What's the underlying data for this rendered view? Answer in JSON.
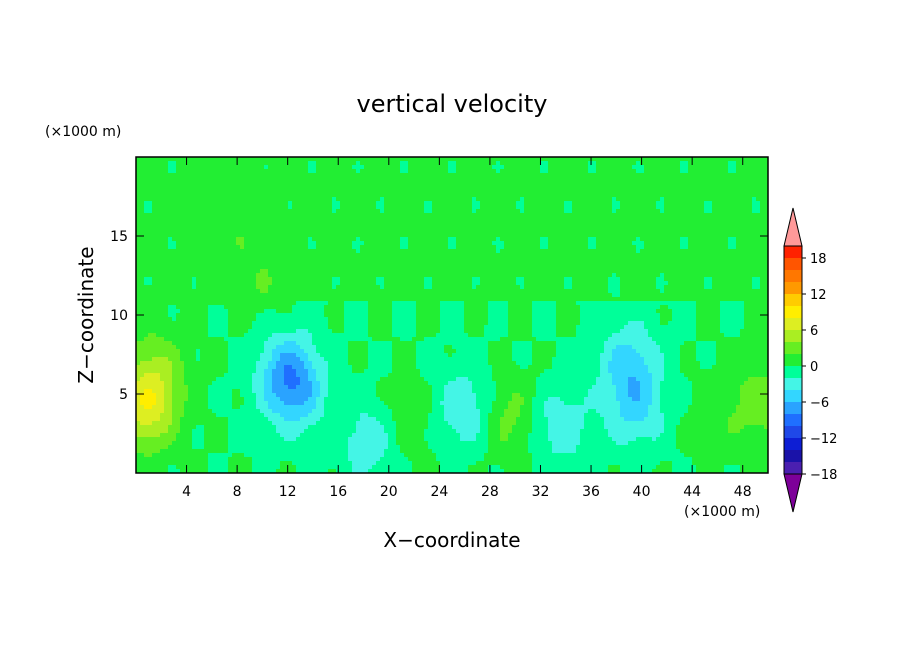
{
  "chart_data": {
    "type": "heatmap",
    "title": "vertical velocity",
    "xlabel": "X−coordinate",
    "ylabel": "Z−coordinate",
    "x_unit": "(×1000 m)",
    "y_unit": "(×1000 m)",
    "xlim": [
      0,
      50
    ],
    "ylim": [
      0,
      20
    ],
    "x_ticks": [
      4,
      8,
      12,
      16,
      20,
      24,
      28,
      32,
      36,
      40,
      44,
      48
    ],
    "y_ticks": [
      5,
      10,
      15
    ],
    "x_tick_labels": [
      "4",
      "8",
      "12",
      "16",
      "20",
      "24",
      "28",
      "32",
      "36",
      "40",
      "44",
      "48"
    ],
    "y_tick_labels": [
      "5",
      "10",
      "15"
    ],
    "colorbar": {
      "levels": [
        -20,
        -18,
        -16,
        -14,
        -12,
        -10,
        -8,
        -6,
        -4,
        -2,
        0,
        2,
        4,
        6,
        8,
        10,
        12,
        14,
        16,
        18,
        20
      ],
      "tick_values": [
        18,
        12,
        6,
        0,
        -6,
        -12,
        -18
      ],
      "tick_labels": [
        "18",
        "12",
        "6",
        "0",
        "−6",
        "−12",
        "−18"
      ],
      "colors": [
        "#7d0099",
        "#4a1fb0",
        "#1a12a8",
        "#0d1ed4",
        "#1f48e8",
        "#1f6fff",
        "#2aa3ff",
        "#33d6ff",
        "#44f5e6",
        "#00ff99",
        "#22ee33",
        "#66ee22",
        "#aaee22",
        "#ddee22",
        "#ffee00",
        "#ffcc00",
        "#ff9900",
        "#ff7700",
        "#ff5500",
        "#ff2200",
        "#ff9999"
      ],
      "extend": "both",
      "position": "right"
    },
    "features": [
      {
        "x": 0.8,
        "z": 4.0,
        "w": 6.5
      },
      {
        "x": 1.5,
        "z": 6.5,
        "w": 3.5
      },
      {
        "x": 49.5,
        "z": 4.5,
        "w": 3.0
      },
      {
        "x": 12.0,
        "z": 6.5,
        "w": -5.0
      },
      {
        "x": 12.5,
        "z": 5.0,
        "w": -4.5
      },
      {
        "x": 10.0,
        "z": 12.0,
        "w": 1.2
      },
      {
        "x": 26.0,
        "z": 4.0,
        "w": -4.0
      },
      {
        "x": 29.5,
        "z": 3.5,
        "w": 3.0
      },
      {
        "x": 33.5,
        "z": 3.0,
        "w": -3.5
      },
      {
        "x": 39.0,
        "z": 7.0,
        "w": -4.5
      },
      {
        "x": 39.5,
        "z": 4.0,
        "w": -4.0
      },
      {
        "x": 18.5,
        "z": 2.0,
        "w": -3.5
      },
      {
        "x": 21.5,
        "z": 3.0,
        "w": 1.8
      },
      {
        "x": 8.0,
        "z": 16.0,
        "w": 1.0
      },
      {
        "x": 46.0,
        "z": 3.5,
        "w": 1.2
      }
    ]
  }
}
